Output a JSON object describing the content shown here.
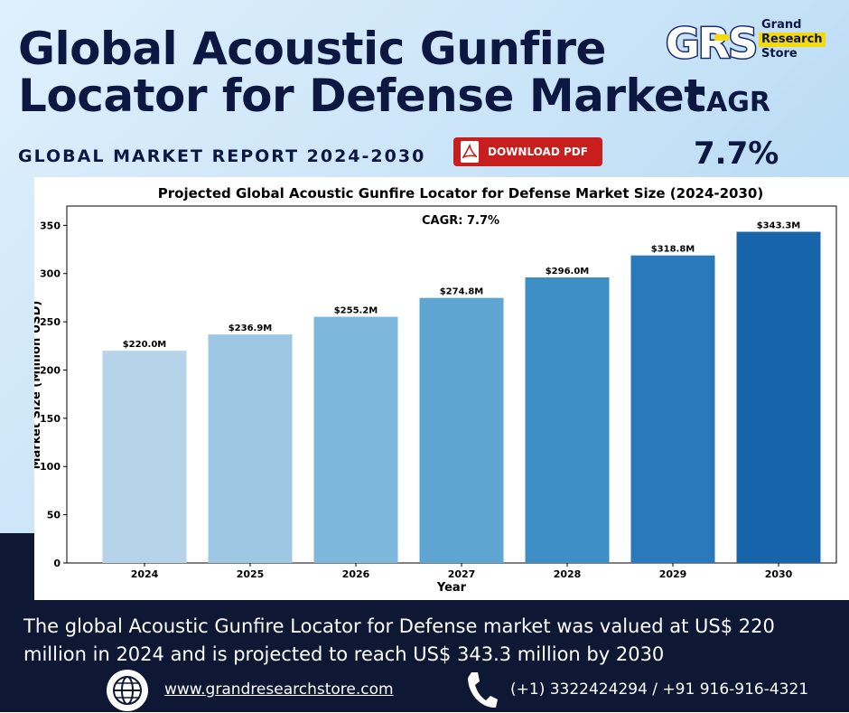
{
  "header": {
    "title_line1": "Global Acoustic Gunfire",
    "title_line2": "Locator for Defense Market",
    "subtitle": "GLOBAL MARKET REPORT 2024-2030",
    "download_label": "DOWNLOAD PDF",
    "cagr_label": "CAGR",
    "cagr_value": "7.7%"
  },
  "logo": {
    "letters": "GRS",
    "line1": "Grand",
    "line2": "Research",
    "line3": "Store"
  },
  "chart_data": {
    "type": "bar",
    "title": "Projected Global Acoustic Gunfire Locator for Defense Market Size (2024-2030)",
    "annotation": "CAGR: 7.7%",
    "xlabel": "Year",
    "ylabel": "Market Size (Million USD)",
    "categories": [
      "2024",
      "2025",
      "2026",
      "2027",
      "2028",
      "2029",
      "2030"
    ],
    "values": [
      220.0,
      236.9,
      255.2,
      274.8,
      296.0,
      318.8,
      343.3
    ],
    "value_labels": [
      "$220.0M",
      "$236.9M",
      "$255.2M",
      "$274.8M",
      "$296.0M",
      "$318.8M",
      "$343.3M"
    ],
    "ylim": [
      0,
      370
    ],
    "yticks": [
      0,
      50,
      100,
      150,
      200,
      250,
      300,
      350
    ],
    "colors": [
      "#b6d4e9",
      "#9dc7e3",
      "#7db7dc",
      "#5ea5d2",
      "#3f8fc7",
      "#2a79ba",
      "#1864ab"
    ],
    "grid": false,
    "legend": "none"
  },
  "description": "The global Acoustic Gunfire Locator for Defense market was valued at US$ 220 million in 2024 and is projected to reach US$ 343.3 million by 2030",
  "footer": {
    "website": "www.grandresearchstore.com",
    "phone": "(+1) 3322424294 / +91 916-916-4321",
    "globe_icon": "globe-icon",
    "phone_icon": "phone-icon"
  }
}
